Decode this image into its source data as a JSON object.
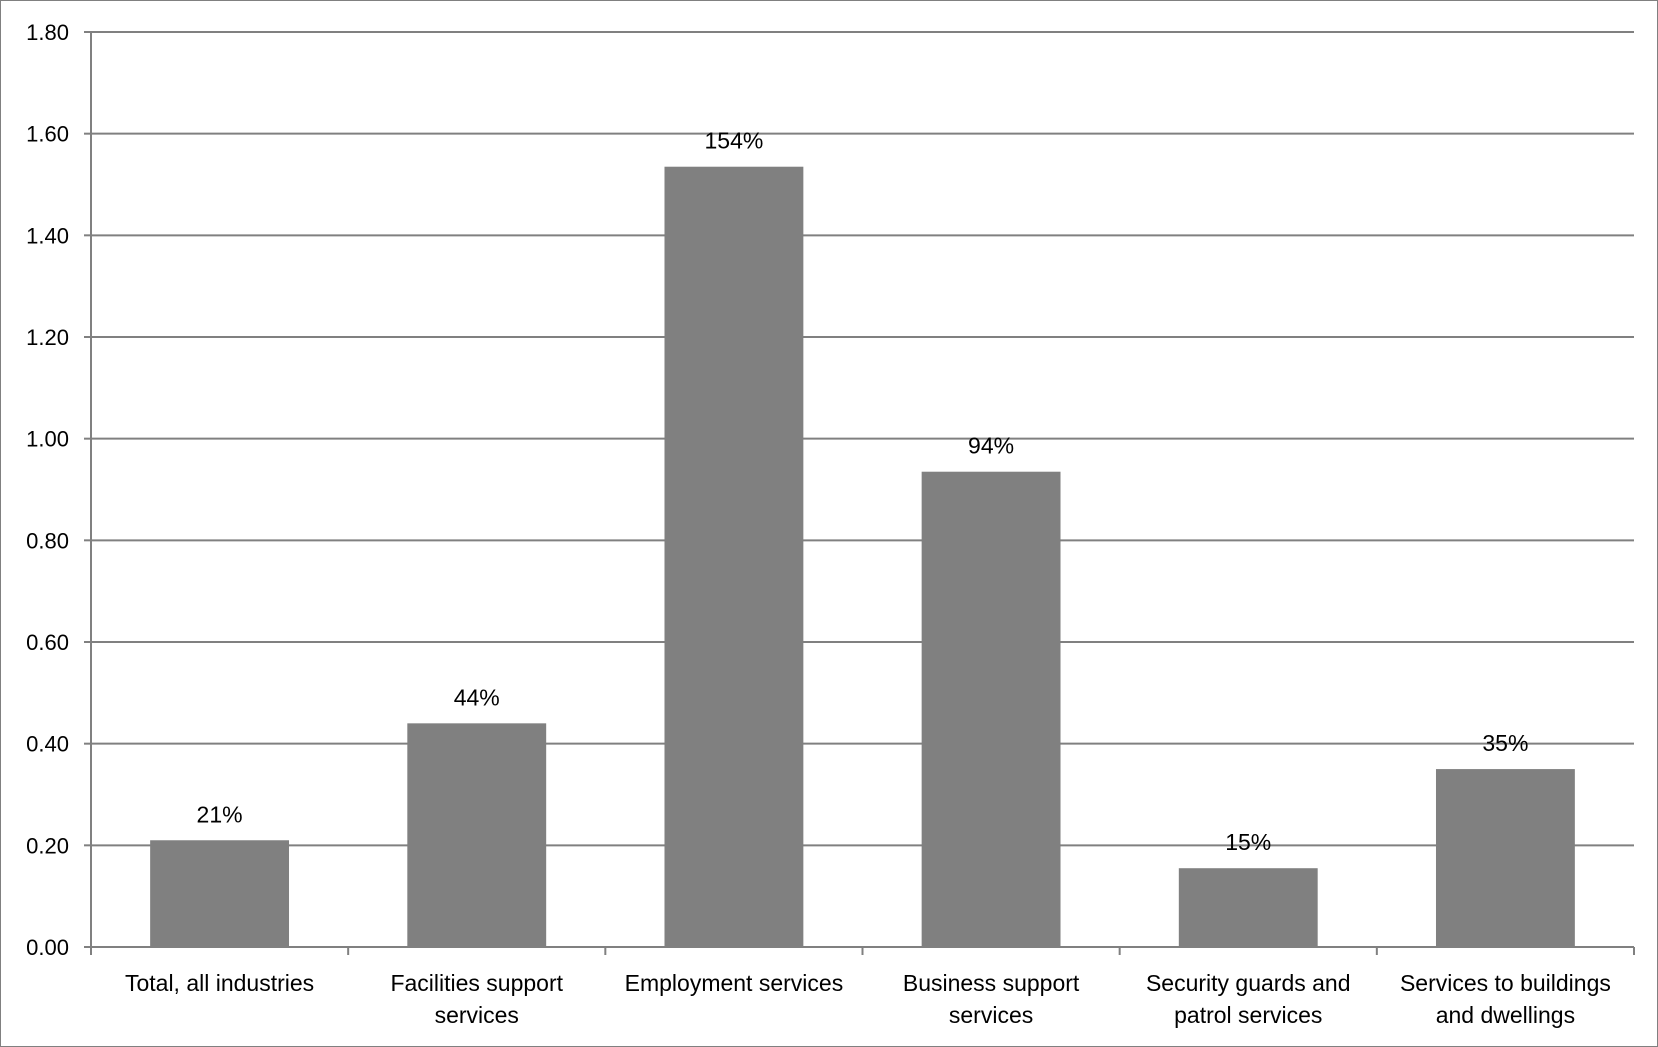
{
  "chart_data": {
    "type": "bar",
    "title": "",
    "xlabel": "",
    "ylabel": "",
    "categories": [
      "Total, all industries",
      "Facilities support services",
      "Employment services",
      "Business support services",
      "Security guards and patrol services",
      "Services to buildings and dwellings"
    ],
    "category_lines": [
      [
        "Total, all industries"
      ],
      [
        "Facilities support",
        "services"
      ],
      [
        "Employment services"
      ],
      [
        "Business support",
        "services"
      ],
      [
        "Security guards and",
        "patrol services"
      ],
      [
        "Services to buildings",
        "and dwellings"
      ]
    ],
    "values": [
      0.21,
      0.44,
      1.535,
      0.935,
      0.155,
      0.35
    ],
    "data_labels": [
      "21%",
      "44%",
      "154%",
      "94%",
      "15%",
      "35%"
    ],
    "ylim": [
      0,
      1.8
    ],
    "y_ticks": [
      "0.00",
      "0.20",
      "0.40",
      "0.60",
      "0.80",
      "1.00",
      "1.20",
      "1.40",
      "1.60",
      "1.80"
    ],
    "y_tick_values": [
      0,
      0.2,
      0.4,
      0.6,
      0.8,
      1.0,
      1.2,
      1.4,
      1.6,
      1.8
    ],
    "grid": true,
    "legend": "none",
    "colors": {
      "bar": "#808080",
      "gridline": "#808080",
      "axis": "#808080"
    }
  }
}
